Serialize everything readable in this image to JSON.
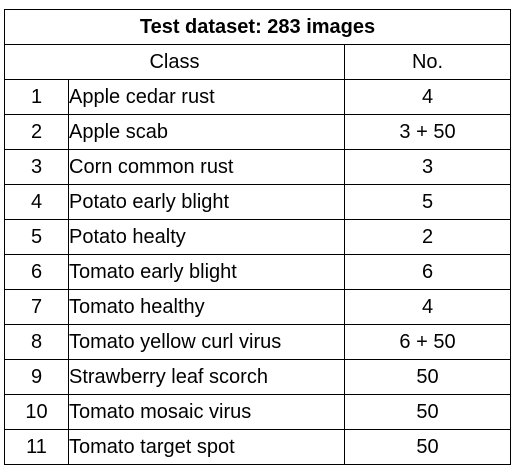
{
  "table": {
    "title": "Test dataset: 283 images",
    "headers": {
      "class": "Class",
      "no": "No."
    },
    "rows": [
      {
        "index": "1",
        "class": "Apple cedar rust",
        "no": "4"
      },
      {
        "index": "2",
        "class": "Apple scab",
        "no": "3 + 50"
      },
      {
        "index": "3",
        "class": "Corn common rust",
        "no": "3"
      },
      {
        "index": "4",
        "class": "Potato early blight",
        "no": "5"
      },
      {
        "index": "5",
        "class": "Potato healty",
        "no": "2"
      },
      {
        "index": "6",
        "class": "Tomato early blight",
        "no": "6"
      },
      {
        "index": "7",
        "class": "Tomato healthy",
        "no": "4"
      },
      {
        "index": "8",
        "class": "Tomato yellow curl virus",
        "no": "6 + 50"
      },
      {
        "index": "9",
        "class": "Strawberry leaf scorch",
        "no": "50"
      },
      {
        "index": "10",
        "class": "Tomato mosaic virus",
        "no": "50"
      },
      {
        "index": "11",
        "class": "Tomato target spot",
        "no": "50"
      }
    ]
  }
}
